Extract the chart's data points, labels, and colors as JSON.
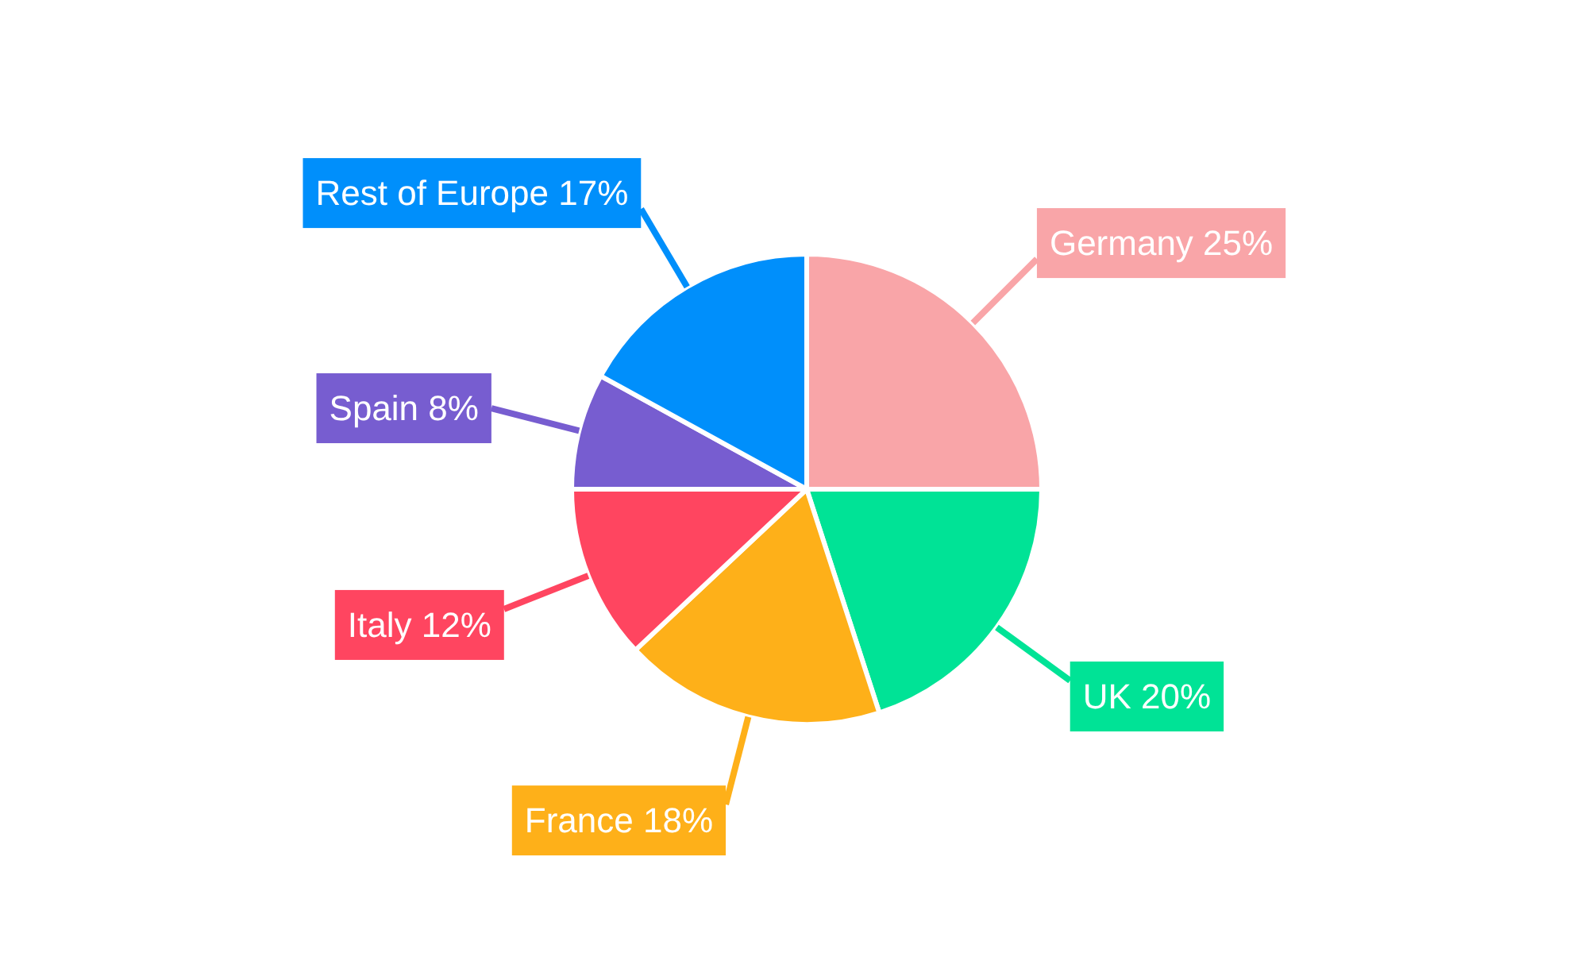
{
  "chart_data": {
    "type": "pie",
    "categories": [
      "Germany",
      "UK",
      "France",
      "Italy",
      "Spain",
      "Rest of Europe"
    ],
    "values": [
      25,
      20,
      18,
      12,
      8,
      17
    ],
    "colors": [
      "#f9a5a8",
      "#00e396",
      "#feb019",
      "#ff4560",
      "#775dd0",
      "#008ffb"
    ],
    "value_labels": [
      "25%",
      "20%",
      "18%",
      "12%",
      "8%",
      "17%"
    ]
  }
}
